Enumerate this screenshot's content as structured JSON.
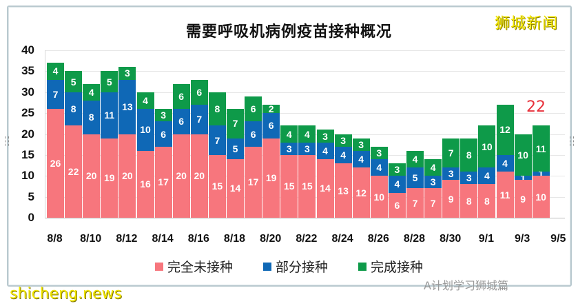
{
  "header": {
    "title": "需要呼吸机病例疫苗接种概况",
    "brand": "狮城新闻"
  },
  "watermarks": {
    "bottom_left": "shicheng.news",
    "bottom_right": "A计划学习狮城篇"
  },
  "colors": {
    "unvaccinated": "#f7767d",
    "partial": "#0f68b6",
    "full": "#0e9a49",
    "annotation": "#e8303a",
    "brand": "#f2e600"
  },
  "chart_data": {
    "type": "bar",
    "stacked": true,
    "title": "需要呼吸机病例疫苗接种概况",
    "xlabel": "",
    "ylabel": "",
    "ylim": [
      0,
      40
    ],
    "yticks": [
      0,
      5,
      10,
      15,
      20,
      25,
      30,
      35,
      40
    ],
    "grid": true,
    "legend_position": "bottom",
    "categories": [
      "8/8",
      "8/9",
      "8/10",
      "8/11",
      "8/12",
      "8/13",
      "8/14",
      "8/15",
      "8/16",
      "8/17",
      "8/18",
      "8/19",
      "8/20",
      "8/21",
      "8/22",
      "8/23",
      "8/24",
      "8/25",
      "8/26",
      "8/27",
      "8/28",
      "8/29",
      "8/30",
      "8/31",
      "9/1",
      "9/2",
      "9/3",
      "9/4"
    ],
    "xtick_labels": [
      "8/8",
      "8/10",
      "8/12",
      "8/14",
      "8/16",
      "8/18",
      "8/20",
      "8/22",
      "8/24",
      "8/26",
      "8/28",
      "8/30",
      "9/1",
      "9/3",
      "9/5"
    ],
    "series": [
      {
        "name": "完全未接种",
        "values": [
          26,
          22,
          20,
          19,
          20,
          16,
          17,
          20,
          20,
          15,
          14,
          17,
          19,
          15,
          15,
          14,
          13,
          12,
          10,
          6,
          7,
          7,
          9,
          8,
          8,
          11,
          9,
          10
        ]
      },
      {
        "name": "部分接种",
        "values": [
          7,
          8,
          8,
          11,
          13,
          10,
          6,
          6,
          7,
          7,
          5,
          6,
          6,
          3,
          3,
          4,
          4,
          4,
          4,
          4,
          5,
          3,
          3,
          3,
          4,
          4,
          1,
          1
        ]
      },
      {
        "name": "完成接种",
        "values": [
          4,
          5,
          4,
          5,
          3,
          4,
          3,
          6,
          6,
          8,
          7,
          6,
          2,
          4,
          4,
          3,
          3,
          3,
          3,
          3,
          4,
          4,
          7,
          8,
          10,
          12,
          10,
          11
        ]
      }
    ],
    "annotations": [
      {
        "category": "9/4",
        "text": "22"
      }
    ]
  },
  "legend": [
    {
      "label": "完全未接种"
    },
    {
      "label": "部分接种"
    },
    {
      "label": "完成接种"
    }
  ]
}
